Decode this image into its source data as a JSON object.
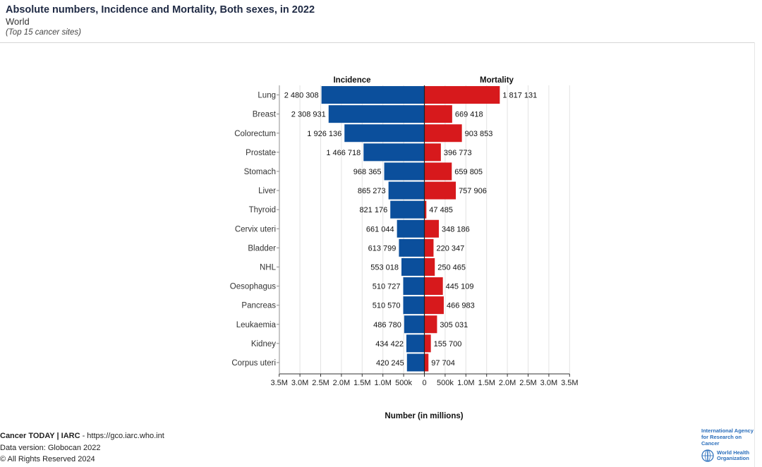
{
  "header": {
    "title": "Absolute numbers, Incidence and Mortality, Both sexes, in 2022",
    "subtitle": "World",
    "note": "(Top 15 cancer sites)"
  },
  "chart_data": {
    "type": "bar",
    "orientation": "horizontal-diverging",
    "title": "Absolute numbers, Incidence and Mortality, Both sexes, in 2022",
    "xlabel": "Number (in millions)",
    "xlim": [
      -3500000,
      3500000
    ],
    "ticks": [
      {
        "value": -3500000,
        "label": "3.5M"
      },
      {
        "value": -3000000,
        "label": "3.0M"
      },
      {
        "value": -2500000,
        "label": "2.5M"
      },
      {
        "value": -2000000,
        "label": "2.0M"
      },
      {
        "value": -1500000,
        "label": "1.5M"
      },
      {
        "value": -1000000,
        "label": "1.0M"
      },
      {
        "value": -500000,
        "label": "500k"
      },
      {
        "value": 0,
        "label": "0"
      },
      {
        "value": 500000,
        "label": "500k"
      },
      {
        "value": 1000000,
        "label": "1.0M"
      },
      {
        "value": 1500000,
        "label": "1.5M"
      },
      {
        "value": 2000000,
        "label": "2.0M"
      },
      {
        "value": 2500000,
        "label": "2.5M"
      },
      {
        "value": 3000000,
        "label": "3.0M"
      },
      {
        "value": 3500000,
        "label": "3.5M"
      }
    ],
    "categories": [
      "Lung",
      "Breast",
      "Colorectum",
      "Prostate",
      "Stomach",
      "Liver",
      "Thyroid",
      "Cervix uteri",
      "Bladder",
      "NHL",
      "Oesophagus",
      "Pancreas",
      "Leukaemia",
      "Kidney",
      "Corpus uteri"
    ],
    "series": [
      {
        "name": "Incidence",
        "side": "left",
        "color": "#0b4f9c",
        "values": [
          2480308,
          2308931,
          1926136,
          1466718,
          968365,
          865273,
          821176,
          661044,
          613799,
          553018,
          510727,
          510570,
          486780,
          434422,
          420245
        ],
        "labels": [
          "2 480 308",
          "2 308 931",
          "1 926 136",
          "1 466 718",
          "968 365",
          "865 273",
          "821 176",
          "661 044",
          "613 799",
          "553 018",
          "510 727",
          "510 570",
          "486 780",
          "434 422",
          "420 245"
        ]
      },
      {
        "name": "Mortality",
        "side": "right",
        "color": "#d7191c",
        "values": [
          1817131,
          669418,
          903853,
          396773,
          659805,
          757906,
          47485,
          348186,
          220347,
          250465,
          445109,
          466983,
          305031,
          155700,
          97704
        ],
        "labels": [
          "1 817 131",
          "669 418",
          "903 853",
          "396 773",
          "659 805",
          "757 906",
          "47 485",
          "348 186",
          "220 347",
          "250 465",
          "445 109",
          "466 983",
          "305 031",
          "155 700",
          "97 704"
        ]
      }
    ]
  },
  "footer": {
    "brand": "Cancer TODAY | IARC",
    "url_text": " - https://gco.iarc.who.int",
    "data_version_label": "Data version",
    "data_version_value": ": Globocan 2022",
    "copyright": "© All Rights Reserved 2024"
  },
  "logos": {
    "iarc_line1": "International Agency",
    "iarc_line2": "for Research on Cancer",
    "who_line1": "World Health",
    "who_line2": "Organization"
  }
}
